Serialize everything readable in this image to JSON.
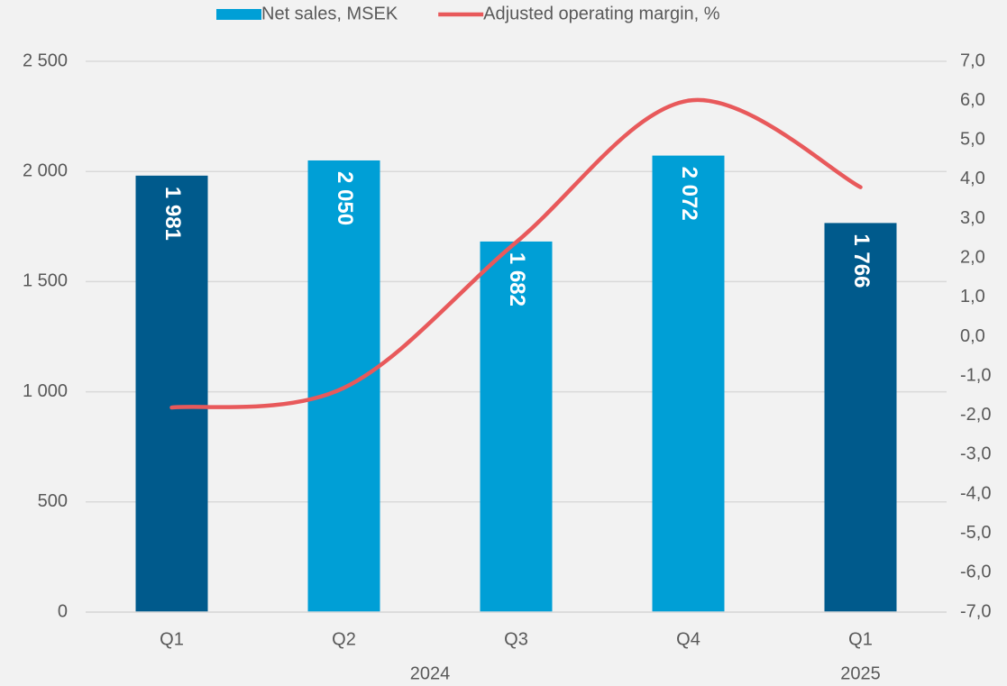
{
  "chart_data": {
    "type": "bar",
    "categories": [
      "Q1",
      "Q2",
      "Q3",
      "Q4",
      "Q1"
    ],
    "category_groups": [
      {
        "label": "2024",
        "count": 4
      },
      {
        "label": "2025",
        "count": 1
      }
    ],
    "series": [
      {
        "name": "Net sales, MSEK",
        "type": "bar",
        "color": "#009fd6",
        "bar_colors": [
          "#005a8c",
          "#009fd6",
          "#009fd6",
          "#009fd6",
          "#005a8c"
        ],
        "values": [
          1981,
          2050,
          1682,
          2072,
          1766
        ],
        "value_labels": [
          "1 981",
          "2 050",
          "1 682",
          "2 072",
          "1 766"
        ]
      },
      {
        "name": "Adjusted operating margin, %",
        "type": "line",
        "color": "#e8595b",
        "axis": "y2",
        "values": [
          -1.8,
          -1.3,
          2.4,
          6.0,
          3.8
        ]
      }
    ],
    "ylim": [
      0,
      2500
    ],
    "yticks": [
      {
        "value": 0,
        "label": "0"
      },
      {
        "value": 500,
        "label": "500"
      },
      {
        "value": 1000,
        "label": "1 000"
      },
      {
        "value": 1500,
        "label": "1 500"
      },
      {
        "value": 2000,
        "label": "2 000"
      },
      {
        "value": 2500,
        "label": "2 500"
      }
    ],
    "y2lim": [
      -7,
      7
    ],
    "y2ticks": [
      {
        "value": -7,
        "label": "-7,0"
      },
      {
        "value": -6,
        "label": "-6,0"
      },
      {
        "value": -5,
        "label": "-5,0"
      },
      {
        "value": -4,
        "label": "-4,0"
      },
      {
        "value": -3,
        "label": "-3,0"
      },
      {
        "value": -2,
        "label": "-2,0"
      },
      {
        "value": -1,
        "label": "-1,0"
      },
      {
        "value": 0,
        "label": "0,0"
      },
      {
        "value": 1,
        "label": "1,0"
      },
      {
        "value": 2,
        "label": "2,0"
      },
      {
        "value": 3,
        "label": "3,0"
      },
      {
        "value": 4,
        "label": "4,0"
      },
      {
        "value": 5,
        "label": "5,0"
      },
      {
        "value": 6,
        "label": "6,0"
      },
      {
        "value": 7,
        "label": "7,0"
      }
    ],
    "grid": true,
    "legend": "top"
  }
}
